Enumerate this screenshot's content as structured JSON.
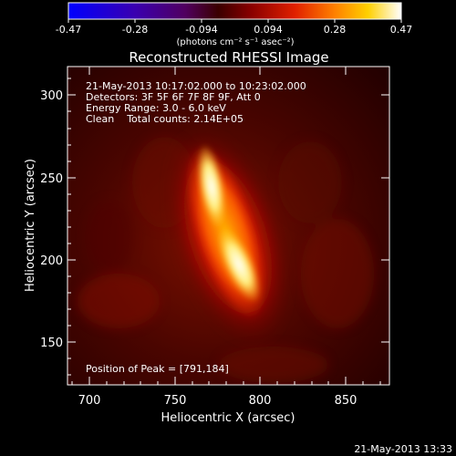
{
  "colorbar": {
    "ticks": [
      "-0.47",
      "-0.28",
      "-0.094",
      "0.094",
      "0.28",
      "0.47"
    ],
    "unit_line": "(photons cm⁻² s⁻¹ asec⁻²)"
  },
  "title": "Reconstructed RHESSI Image",
  "info": {
    "time_range": "21-May-2013 10:17:02.000 to 10:23:02.000",
    "detectors": "Detectors: 3F 5F 6F 7F 8F 9F, Att 0",
    "energy": "Energy Range: 3.0 - 6.0 keV",
    "method": "Clean    Total counts: 2.14E+05",
    "peak": "Position of Peak = [791,184]"
  },
  "axes": {
    "xlabel": "Heliocentric X (arcsec)",
    "ylabel": "Heliocentric Y (arcsec)",
    "xticks": [
      "700",
      "750",
      "800",
      "850"
    ],
    "yticks": [
      "150",
      "200",
      "250",
      "300"
    ]
  },
  "timestamp": "21-May-2013 13:33",
  "colors": {
    "background": "#000000",
    "text": "#ffffff"
  }
}
